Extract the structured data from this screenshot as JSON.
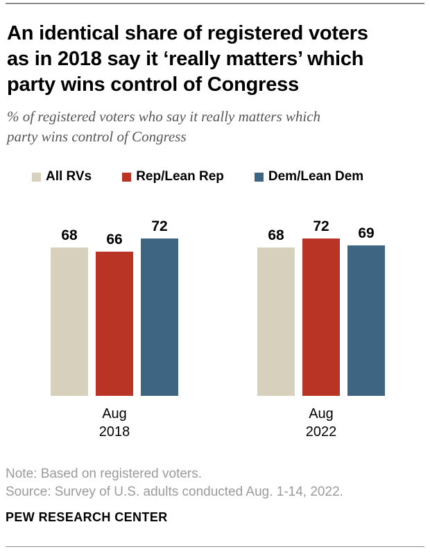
{
  "header": {
    "title_lines": [
      "An identical share of registered voters",
      "as in 2018 say it ‘really matters’ which",
      "party wins control of Congress"
    ],
    "subtitle_lines": [
      "% of registered voters who say it really matters which",
      "party wins control of Congress"
    ]
  },
  "legend": {
    "items": [
      {
        "label": "All RVs",
        "color": "#d6d0bd"
      },
      {
        "label": "Rep/Lean Rep",
        "color": "#ba3425"
      },
      {
        "label": "Dem/Lean Dem",
        "color": "#3e6582"
      }
    ]
  },
  "chart_data": {
    "type": "bar",
    "title": "An identical share of registered voters as in 2018 say it ‘really matters’ which party wins control of Congress",
    "subtitle": "% of registered voters who say it really matters which party wins control of Congress",
    "categories": [
      "Aug 2018",
      "Aug 2022"
    ],
    "series": [
      {
        "name": "All RVs",
        "color": "#d6d0bd",
        "values": [
          68,
          68
        ]
      },
      {
        "name": "Rep/Lean Rep",
        "color": "#ba3425",
        "values": [
          66,
          72
        ]
      },
      {
        "name": "Dem/Lean Dem",
        "color": "#3e6582",
        "values": [
          72,
          69
        ]
      }
    ],
    "value_labels": true,
    "ylim": [
      0,
      80
    ],
    "grid": false,
    "legend_position": "top"
  },
  "footer": {
    "note": "Note: Based on registered voters.",
    "source": "Source: Survey of U.S. adults conducted Aug. 1-14, 2022.",
    "brand": "PEW RESEARCH CENTER"
  }
}
